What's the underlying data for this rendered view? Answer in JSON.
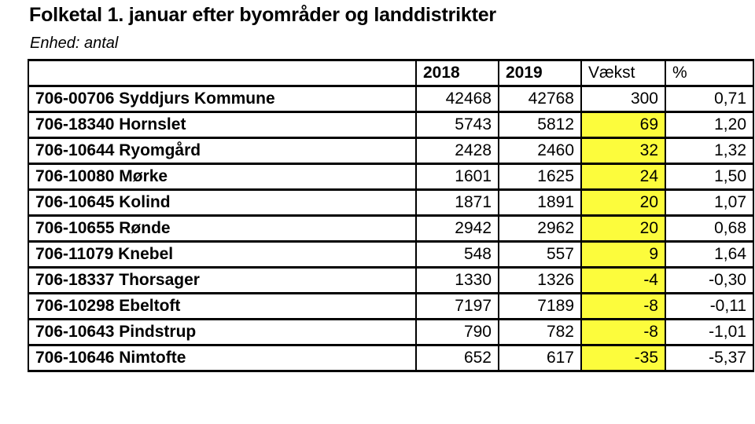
{
  "page": {
    "title": "Folketal 1. januar efter byområder og landdistrikter",
    "unit_label": "Enhed: antal"
  },
  "colors": {
    "highlight": "#fcfc3c",
    "border": "#000000",
    "text": "#000000",
    "background": "#ffffff"
  },
  "table": {
    "columns": {
      "area": "",
      "y2018": "2018",
      "y2019": "2019",
      "growth": "Vækst",
      "pct": "%"
    },
    "rows": [
      {
        "area": "706-00706 Syddjurs Kommune",
        "y2018": "42468",
        "y2019": "42768",
        "growth": "300",
        "pct": "0,71",
        "highlight": false
      },
      {
        "area": "706-18340 Hornslet",
        "y2018": "5743",
        "y2019": "5812",
        "growth": "69",
        "pct": "1,20",
        "highlight": true
      },
      {
        "area": "706-10644 Ryomgård",
        "y2018": "2428",
        "y2019": "2460",
        "growth": "32",
        "pct": "1,32",
        "highlight": true
      },
      {
        "area": "706-10080 Mørke",
        "y2018": "1601",
        "y2019": "1625",
        "growth": "24",
        "pct": "1,50",
        "highlight": true
      },
      {
        "area": "706-10645 Kolind",
        "y2018": "1871",
        "y2019": "1891",
        "growth": "20",
        "pct": "1,07",
        "highlight": true
      },
      {
        "area": "706-10655 Rønde",
        "y2018": "2942",
        "y2019": "2962",
        "growth": "20",
        "pct": "0,68",
        "highlight": true
      },
      {
        "area": "706-11079 Knebel",
        "y2018": "548",
        "y2019": "557",
        "growth": "9",
        "pct": "1,64",
        "highlight": true
      },
      {
        "area": "706-18337 Thorsager",
        "y2018": "1330",
        "y2019": "1326",
        "growth": "-4",
        "pct": "-0,30",
        "highlight": true
      },
      {
        "area": "706-10298 Ebeltoft",
        "y2018": "7197",
        "y2019": "7189",
        "growth": "-8",
        "pct": "-0,11",
        "highlight": true
      },
      {
        "area": "706-10643 Pindstrup",
        "y2018": "790",
        "y2019": "782",
        "growth": "-8",
        "pct": "-1,01",
        "highlight": true
      },
      {
        "area": "706-10646 Nimtofte",
        "y2018": "652",
        "y2019": "617",
        "growth": "-35",
        "pct": "-5,37",
        "highlight": true
      }
    ]
  }
}
